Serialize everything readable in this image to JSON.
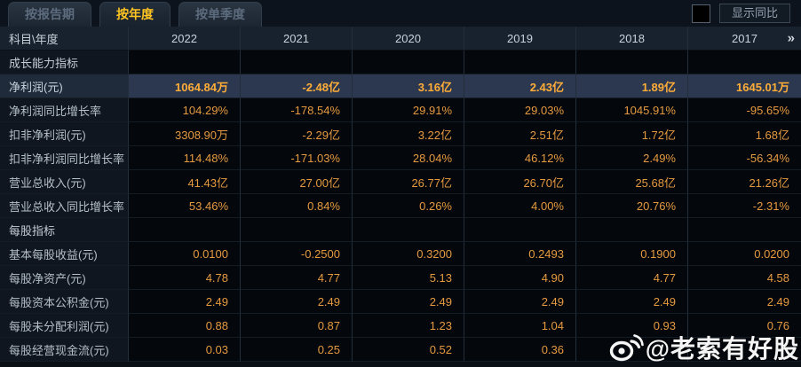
{
  "tabs": [
    {
      "label": "按报告期",
      "active": false
    },
    {
      "label": "按年度",
      "active": true
    },
    {
      "label": "按单季度",
      "active": false
    }
  ],
  "controls": {
    "show_yoy_label": "显示同比",
    "checkbox_checked": false
  },
  "table": {
    "header": {
      "first_col": "科目\\年度",
      "years": [
        "2022",
        "2021",
        "2020",
        "2019",
        "2018",
        "2017"
      ],
      "more_icon": "»"
    },
    "rows": [
      {
        "type": "section",
        "label": "成长能力指标",
        "values": [
          "",
          "",
          "",
          "",
          "",
          ""
        ]
      },
      {
        "type": "data",
        "label": "净利润(元)",
        "highlight": true,
        "values": [
          "1064.84万",
          "-2.48亿",
          "3.16亿",
          "2.43亿",
          "1.89亿",
          "1645.01万"
        ]
      },
      {
        "type": "data",
        "label": "净利润同比增长率",
        "values": [
          "104.29%",
          "-178.54%",
          "29.91%",
          "29.03%",
          "1045.91%",
          "-95.65%"
        ]
      },
      {
        "type": "data",
        "label": "扣非净利润(元)",
        "values": [
          "3308.90万",
          "-2.29亿",
          "3.22亿",
          "2.51亿",
          "1.72亿",
          "1.68亿"
        ]
      },
      {
        "type": "data",
        "label": "扣非净利润同比增长率",
        "values": [
          "114.48%",
          "-171.03%",
          "28.04%",
          "46.12%",
          "2.49%",
          "-56.34%"
        ]
      },
      {
        "type": "data",
        "label": "营业总收入(元)",
        "values": [
          "41.43亿",
          "27.00亿",
          "26.77亿",
          "26.70亿",
          "25.68亿",
          "21.26亿"
        ]
      },
      {
        "type": "data",
        "label": "营业总收入同比增长率",
        "values": [
          "53.46%",
          "0.84%",
          "0.26%",
          "4.00%",
          "20.76%",
          "-2.31%"
        ]
      },
      {
        "type": "section",
        "label": "每股指标",
        "values": [
          "",
          "",
          "",
          "",
          "",
          ""
        ]
      },
      {
        "type": "data",
        "label": "基本每股收益(元)",
        "values": [
          "0.0100",
          "-0.2500",
          "0.3200",
          "0.2493",
          "0.1900",
          "0.0200"
        ]
      },
      {
        "type": "data",
        "label": "每股净资产(元)",
        "values": [
          "4.78",
          "4.77",
          "5.13",
          "4.90",
          "4.77",
          "4.58"
        ]
      },
      {
        "type": "data",
        "label": "每股资本公积金(元)",
        "values": [
          "2.49",
          "2.49",
          "2.49",
          "2.49",
          "2.49",
          "2.49"
        ]
      },
      {
        "type": "data",
        "label": "每股未分配利润(元)",
        "values": [
          "0.88",
          "0.87",
          "1.23",
          "1.04",
          "0.93",
          "0.76"
        ]
      },
      {
        "type": "data",
        "label": "每股经营现金流(元)",
        "values": [
          "0.03",
          "0.25",
          "0.52",
          "0.36",
          "",
          ""
        ]
      }
    ]
  },
  "watermark": {
    "text": "@老索有好股",
    "icon": "weibo-icon"
  },
  "colors": {
    "accent_gold": "#ffc421",
    "value_orange": "#e59a40",
    "highlight_row_bg": "#2b3850",
    "header_bg": "#18222e",
    "label_col_bg": "#10161f",
    "data_cell_bg": "#04070c"
  }
}
